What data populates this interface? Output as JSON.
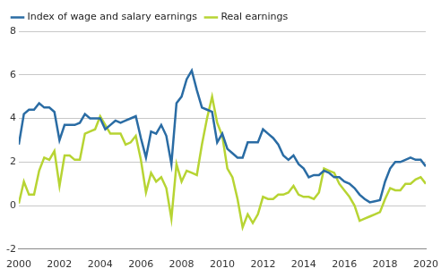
{
  "chart_data": {
    "type": "line",
    "x": [
      2000,
      2000.25,
      2000.5,
      2000.75,
      2001,
      2001.25,
      2001.5,
      2001.75,
      2002,
      2002.25,
      2002.5,
      2002.75,
      2003,
      2003.25,
      2003.5,
      2003.75,
      2004,
      2004.25,
      2004.5,
      2004.75,
      2005,
      2005.25,
      2005.5,
      2005.75,
      2006,
      2006.25,
      2006.5,
      2006.75,
      2007,
      2007.25,
      2007.5,
      2007.75,
      2008,
      2008.25,
      2008.5,
      2008.75,
      2009,
      2009.25,
      2009.5,
      2009.75,
      2010,
      2010.25,
      2010.5,
      2010.75,
      2011,
      2011.25,
      2011.5,
      2011.75,
      2012,
      2012.25,
      2012.5,
      2012.75,
      2013,
      2013.25,
      2013.5,
      2013.75,
      2014,
      2014.25,
      2014.5,
      2014.75,
      2015,
      2015.25,
      2015.5,
      2015.75,
      2016,
      2016.25,
      2016.5,
      2016.75,
      2017,
      2017.25,
      2017.5,
      2017.75,
      2018,
      2018.25,
      2018.5,
      2018.75,
      2019,
      2019.25,
      2019.5,
      2019.75,
      2020
    ],
    "series": [
      {
        "name": "Index of wage and salary earnings",
        "color": "#2a6ca4",
        "values": [
          2.8,
          4.2,
          4.4,
          4.4,
          4.7,
          4.5,
          4.5,
          4.3,
          3.0,
          3.7,
          3.7,
          3.7,
          3.8,
          4.2,
          4.0,
          4.0,
          4.0,
          3.5,
          3.7,
          3.9,
          3.8,
          3.9,
          4.0,
          4.1,
          3.1,
          2.2,
          3.4,
          3.3,
          3.7,
          3.2,
          1.9,
          4.7,
          5.0,
          5.8,
          6.2,
          5.3,
          4.5,
          4.4,
          4.3,
          2.9,
          3.3,
          2.6,
          2.4,
          2.2,
          2.2,
          2.9,
          2.9,
          2.9,
          3.5,
          3.3,
          3.1,
          2.8,
          2.3,
          2.1,
          2.3,
          1.9,
          1.7,
          1.3,
          1.4,
          1.4,
          1.6,
          1.5,
          1.3,
          1.3,
          1.1,
          1.0,
          0.8,
          0.5,
          0.3,
          0.15,
          0.2,
          0.25,
          1.1,
          1.7,
          2.0,
          2.0,
          2.1,
          2.2,
          2.1,
          2.1,
          1.8
        ]
      },
      {
        "name": "Real earnings",
        "color": "#b7d433",
        "values": [
          0.1,
          1.1,
          0.5,
          0.5,
          1.6,
          2.2,
          2.1,
          2.5,
          0.9,
          2.3,
          2.3,
          2.1,
          2.1,
          3.3,
          3.4,
          3.5,
          4.1,
          3.7,
          3.3,
          3.3,
          3.3,
          2.8,
          2.9,
          3.2,
          2.1,
          0.6,
          1.5,
          1.1,
          1.3,
          0.8,
          -0.6,
          1.9,
          1.1,
          1.6,
          1.5,
          1.4,
          2.8,
          4.0,
          5.0,
          3.8,
          3.2,
          1.7,
          1.3,
          0.3,
          -1.0,
          -0.4,
          -0.8,
          -0.4,
          0.4,
          0.3,
          0.3,
          0.5,
          0.5,
          0.6,
          0.9,
          0.5,
          0.4,
          0.4,
          0.3,
          0.6,
          1.7,
          1.6,
          1.5,
          1.0,
          0.7,
          0.4,
          0.0,
          -0.7,
          -0.6,
          -0.5,
          -0.4,
          -0.3,
          0.3,
          0.8,
          0.7,
          0.7,
          1.0,
          1.0,
          1.2,
          1.3,
          1.0
        ]
      }
    ],
    "xlim": [
      2000,
      2020
    ],
    "xticks": [
      2000,
      2002,
      2004,
      2006,
      2008,
      2010,
      2012,
      2014,
      2016,
      2018,
      2020
    ],
    "ylim": [
      -2,
      8
    ],
    "yticks": [
      -2,
      0,
      2,
      4,
      6,
      8
    ],
    "grid": true,
    "legend": "upper left"
  }
}
